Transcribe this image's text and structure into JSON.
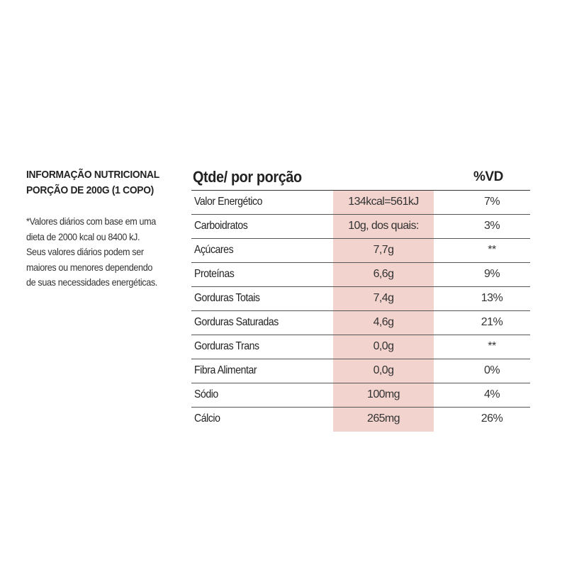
{
  "info": {
    "title_line1": "INFORMAÇÃO NUTRICIONAL",
    "title_line2": "PORÇÃO DE 200G (1 COPO)",
    "footnote": "*Valores diários com base em uma dieta de 2000 kcal ou 8400 kJ. Seus valores diários podem ser maiores ou menores dependendo de suas necessidades energéticas."
  },
  "table": {
    "header_qty": "Qtde/ por porção",
    "header_vd": "%VD",
    "rows": [
      {
        "name": "Valor Energético",
        "qty": "134kcal=561kJ",
        "vd": "7%"
      },
      {
        "name": "Carboidratos",
        "qty": "10g, dos quais:",
        "vd": "3%"
      },
      {
        "name": "Açúcares",
        "qty": "7,7g",
        "vd": "**"
      },
      {
        "name": "Proteínas",
        "qty": "6,6g",
        "vd": "9%"
      },
      {
        "name": "Gorduras Totais",
        "qty": "7,4g",
        "vd": "13%"
      },
      {
        "name": "Gorduras Saturadas",
        "qty": "4,6g",
        "vd": "21%"
      },
      {
        "name": "Gorduras Trans",
        "qty": "0,0g",
        "vd": "**"
      },
      {
        "name": "Fibra Alimentar",
        "qty": "0,0g",
        "vd": "0%"
      },
      {
        "name": "Sódio",
        "qty": "100mg",
        "vd": "4%"
      },
      {
        "name": "Cálcio",
        "qty": "265mg",
        "vd": "26%"
      }
    ]
  },
  "colors": {
    "highlight": "#f2d3cd",
    "text": "#222222"
  }
}
